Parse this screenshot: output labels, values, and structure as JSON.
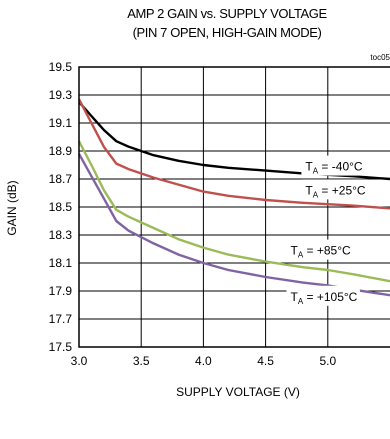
{
  "chart_data": {
    "type": "line",
    "title": "AMP 2 GAIN vs. SUPPLY VOLTAGE",
    "subtitle": "(PIN 7 OPEN, HIGH-GAIN MODE)",
    "note": "toc05",
    "xlabel": "SUPPLY VOLTAGE (V)",
    "ylabel": "GAIN (dB)",
    "xlim": [
      3.0,
      5.5
    ],
    "ylim": [
      17.5,
      19.5
    ],
    "x_ticks": [
      "3.0",
      "3.5",
      "4.0",
      "4.5",
      "5.0"
    ],
    "y_ticks": [
      "19.5",
      "19.3",
      "19.1",
      "18.9",
      "18.7",
      "18.5",
      "18.3",
      "18.1",
      "17.9",
      "17.7",
      "17.5"
    ],
    "grid": true,
    "series": [
      {
        "name": "-40°C",
        "color": "#000000",
        "x": [
          3.0,
          3.1,
          3.2,
          3.3,
          3.4,
          3.6,
          3.8,
          4.0,
          4.2,
          4.5,
          4.8,
          5.0,
          5.2,
          5.5
        ],
        "y": [
          19.25,
          19.15,
          19.05,
          18.97,
          18.93,
          18.87,
          18.83,
          18.8,
          18.78,
          18.76,
          18.74,
          18.73,
          18.72,
          18.7
        ]
      },
      {
        "name": "+25°C",
        "color": "#c0504d",
        "x": [
          3.0,
          3.1,
          3.2,
          3.3,
          3.4,
          3.6,
          3.8,
          4.0,
          4.2,
          4.5,
          4.8,
          5.0,
          5.2,
          5.5
        ],
        "y": [
          19.27,
          19.1,
          18.93,
          18.81,
          18.77,
          18.71,
          18.66,
          18.61,
          18.58,
          18.55,
          18.53,
          18.52,
          18.51,
          18.49
        ]
      },
      {
        "name": "+85°C",
        "color": "#9bbb59",
        "x": [
          3.0,
          3.1,
          3.2,
          3.3,
          3.4,
          3.6,
          3.8,
          4.0,
          4.2,
          4.5,
          4.8,
          5.0,
          5.2,
          5.5
        ],
        "y": [
          18.97,
          18.8,
          18.62,
          18.48,
          18.43,
          18.35,
          18.27,
          18.21,
          18.16,
          18.11,
          18.07,
          18.05,
          18.02,
          17.97
        ]
      },
      {
        "name": "+105°C",
        "color": "#8064a2",
        "x": [
          3.0,
          3.1,
          3.2,
          3.3,
          3.4,
          3.6,
          3.8,
          4.0,
          4.2,
          4.5,
          4.8,
          5.0,
          5.2,
          5.5
        ],
        "y": [
          18.88,
          18.72,
          18.56,
          18.4,
          18.33,
          18.24,
          18.16,
          18.1,
          18.05,
          18.0,
          17.96,
          17.94,
          17.91,
          17.87
        ]
      }
    ],
    "legend_labels": [
      {
        "prefix": "T",
        "sub": "A",
        "text": " = -40°C",
        "at_x": 4.82,
        "at_y": 18.76
      },
      {
        "prefix": "T",
        "sub": "A",
        "text": " = +25°C",
        "at_x": 4.82,
        "at_y": 18.59
      },
      {
        "prefix": "T",
        "sub": "A",
        "text": " = +85°C",
        "at_x": 4.7,
        "at_y": 18.16
      },
      {
        "prefix": "T",
        "sub": "A",
        "text": " = +105°C",
        "at_x": 4.7,
        "at_y": 17.83
      }
    ]
  }
}
